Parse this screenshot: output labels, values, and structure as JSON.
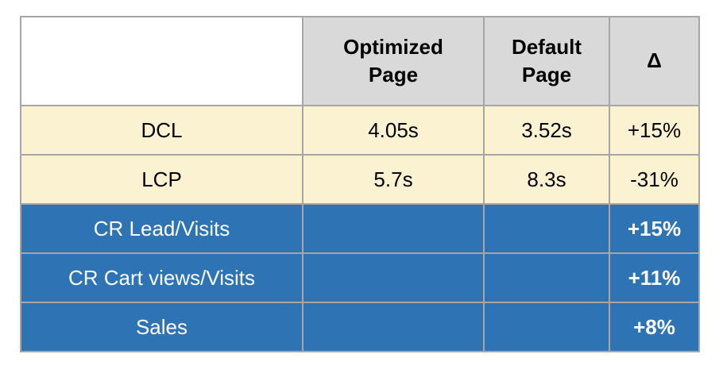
{
  "colors": {
    "border": "#a6a6a6",
    "header_fill": "#d9d9d9",
    "cream_fill": "#faf2d0",
    "blue_fill": "#2e74b5",
    "text_dark": "#000000",
    "text_light": "#ffffff"
  },
  "chart_data": {
    "type": "table",
    "columns": [
      "",
      "Optimized Page",
      "Default Page",
      "Δ"
    ],
    "rows": [
      {
        "label": "DCL",
        "optimized": "4.05s",
        "default": "3.52s",
        "delta": "+15%",
        "section": "timing"
      },
      {
        "label": "LCP",
        "optimized": "5.7s",
        "default": "8.3s",
        "delta": "-31%",
        "section": "timing"
      },
      {
        "label": "CR Lead/Visits",
        "optimized": "",
        "default": "",
        "delta": "+15%",
        "section": "business"
      },
      {
        "label": "CR Cart views/Visits",
        "optimized": "",
        "default": "",
        "delta": "+11%",
        "section": "business"
      },
      {
        "label": "Sales",
        "optimized": "",
        "default": "",
        "delta": "+8%",
        "section": "business"
      }
    ]
  }
}
